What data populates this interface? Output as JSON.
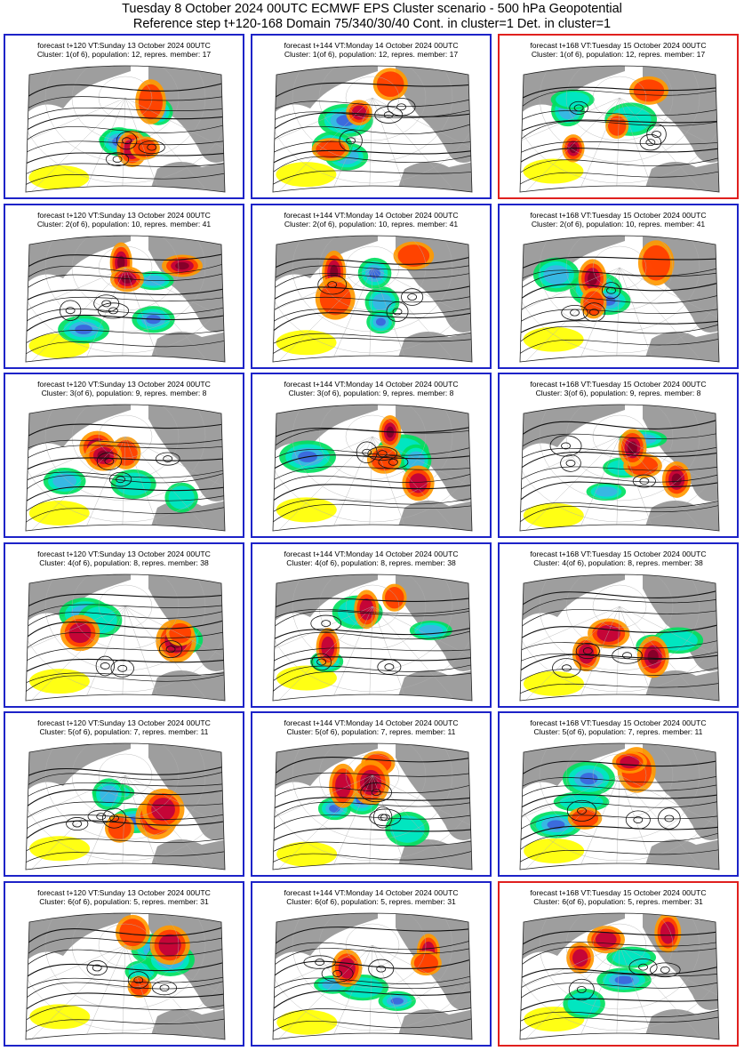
{
  "header": {
    "line1": "Tuesday 8 October 2024 00UTC ECMWF EPS Cluster scenario - 500 hPa Geopotential",
    "line2": "Reference step t+120-168 Domain 75/340/30/40 Cont. in cluster=1 Det. in cluster=1"
  },
  "colors": {
    "panel_border": "#1d23c8",
    "highlight_border": "#e0201e",
    "land": "#9e9e9e",
    "positive_anomaly": [
      "#ffff00",
      "#ff9900",
      "#ff3c00",
      "#c0003c",
      "#800028"
    ],
    "negative_anomaly": [
      "#00e060",
      "#00e6c8",
      "#3cb4e6",
      "#3c64dc",
      "#1e1eb4"
    ]
  },
  "rows": [
    {
      "cluster_label": "Cluster: 1(of 6), population: 12, repres. member: 17",
      "panels": [
        {
          "forecast": "forecast t+120 VT:Sunday 13 October 2024 00UTC",
          "highlight": false
        },
        {
          "forecast": "forecast t+144 VT:Monday 14 October 2024 00UTC",
          "highlight": false
        },
        {
          "forecast": "forecast t+168 VT:Tuesday 15 October 2024 00UTC",
          "highlight": true
        }
      ]
    },
    {
      "cluster_label": "Cluster: 2(of 6), population: 10, repres. member: 41",
      "panels": [
        {
          "forecast": "forecast t+120 VT:Sunday 13 October 2024 00UTC",
          "highlight": false
        },
        {
          "forecast": "forecast t+144 VT:Monday 14 October 2024 00UTC",
          "highlight": false
        },
        {
          "forecast": "forecast t+168 VT:Tuesday 15 October 2024 00UTC",
          "highlight": false
        }
      ]
    },
    {
      "cluster_label": "Cluster: 3(of 6), population: 9, repres. member: 8",
      "panels": [
        {
          "forecast": "forecast t+120 VT:Sunday 13 October 2024 00UTC",
          "highlight": false
        },
        {
          "forecast": "forecast t+144 VT:Monday 14 October 2024 00UTC",
          "highlight": false
        },
        {
          "forecast": "forecast t+168 VT:Tuesday 15 October 2024 00UTC",
          "highlight": false
        }
      ]
    },
    {
      "cluster_label": "Cluster: 4(of 6), population: 8, repres. member: 38",
      "panels": [
        {
          "forecast": "forecast t+120 VT:Sunday 13 October 2024 00UTC",
          "highlight": false
        },
        {
          "forecast": "forecast t+144 VT:Monday 14 October 2024 00UTC",
          "highlight": false
        },
        {
          "forecast": "forecast t+168 VT:Tuesday 15 October 2024 00UTC",
          "highlight": false
        }
      ]
    },
    {
      "cluster_label": "Cluster: 5(of 6), population: 7, repres. member: 11",
      "panels": [
        {
          "forecast": "forecast t+120 VT:Sunday 13 October 2024 00UTC",
          "highlight": false
        },
        {
          "forecast": "forecast t+144 VT:Monday 14 October 2024 00UTC",
          "highlight": false
        },
        {
          "forecast": "forecast t+168 VT:Tuesday 15 October 2024 00UTC",
          "highlight": false
        }
      ]
    },
    {
      "cluster_label": "Cluster: 6(of 6), population: 5, repres. member: 31",
      "panels": [
        {
          "forecast": "forecast t+120 VT:Sunday 13 October 2024 00UTC",
          "highlight": false
        },
        {
          "forecast": "forecast t+144 VT:Monday 14 October 2024 00UTC",
          "highlight": false
        },
        {
          "forecast": "forecast t+168 VT:Tuesday 15 October 2024 00UTC",
          "highlight": true
        }
      ]
    }
  ]
}
